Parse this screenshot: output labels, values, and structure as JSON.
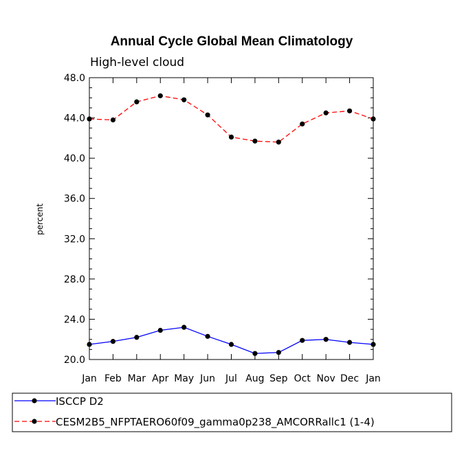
{
  "chart_data": {
    "type": "line",
    "title": "Annual Cycle Global Mean Climatology",
    "subtitle": "High-level cloud",
    "xlabel": "",
    "ylabel": "percent",
    "categories": [
      "Jan",
      "Feb",
      "Mar",
      "Apr",
      "May",
      "Jun",
      "Jul",
      "Aug",
      "Sep",
      "Oct",
      "Nov",
      "Dec",
      "Jan"
    ],
    "ylim": [
      20.0,
      48.0
    ],
    "yticks": [
      "20.0",
      "24.0",
      "28.0",
      "32.0",
      "36.0",
      "40.0",
      "44.0",
      "48.0"
    ],
    "series": [
      {
        "name": "ISCCP D2",
        "color": "#0000ff",
        "dash": "solid",
        "values": [
          21.5,
          21.8,
          22.2,
          22.9,
          23.2,
          22.3,
          21.5,
          20.6,
          20.7,
          21.9,
          22.0,
          21.7,
          21.5
        ]
      },
      {
        "name": "CESM2B5_NFPTAERO60f09_gamma0p238_AMCORRallc1 (1-4)",
        "color": "#ff0000",
        "dash": "dashed",
        "values": [
          43.9,
          43.8,
          45.6,
          46.2,
          45.8,
          44.3,
          42.1,
          41.7,
          41.6,
          43.4,
          44.5,
          44.7,
          43.9
        ]
      }
    ],
    "legend": {
      "placement": "bottom-left",
      "entries": [
        "ISCCP D2",
        "CESM2B5_NFPTAERO60f09_gamma0p238_AMCORRallc1 (1-4)"
      ]
    }
  }
}
